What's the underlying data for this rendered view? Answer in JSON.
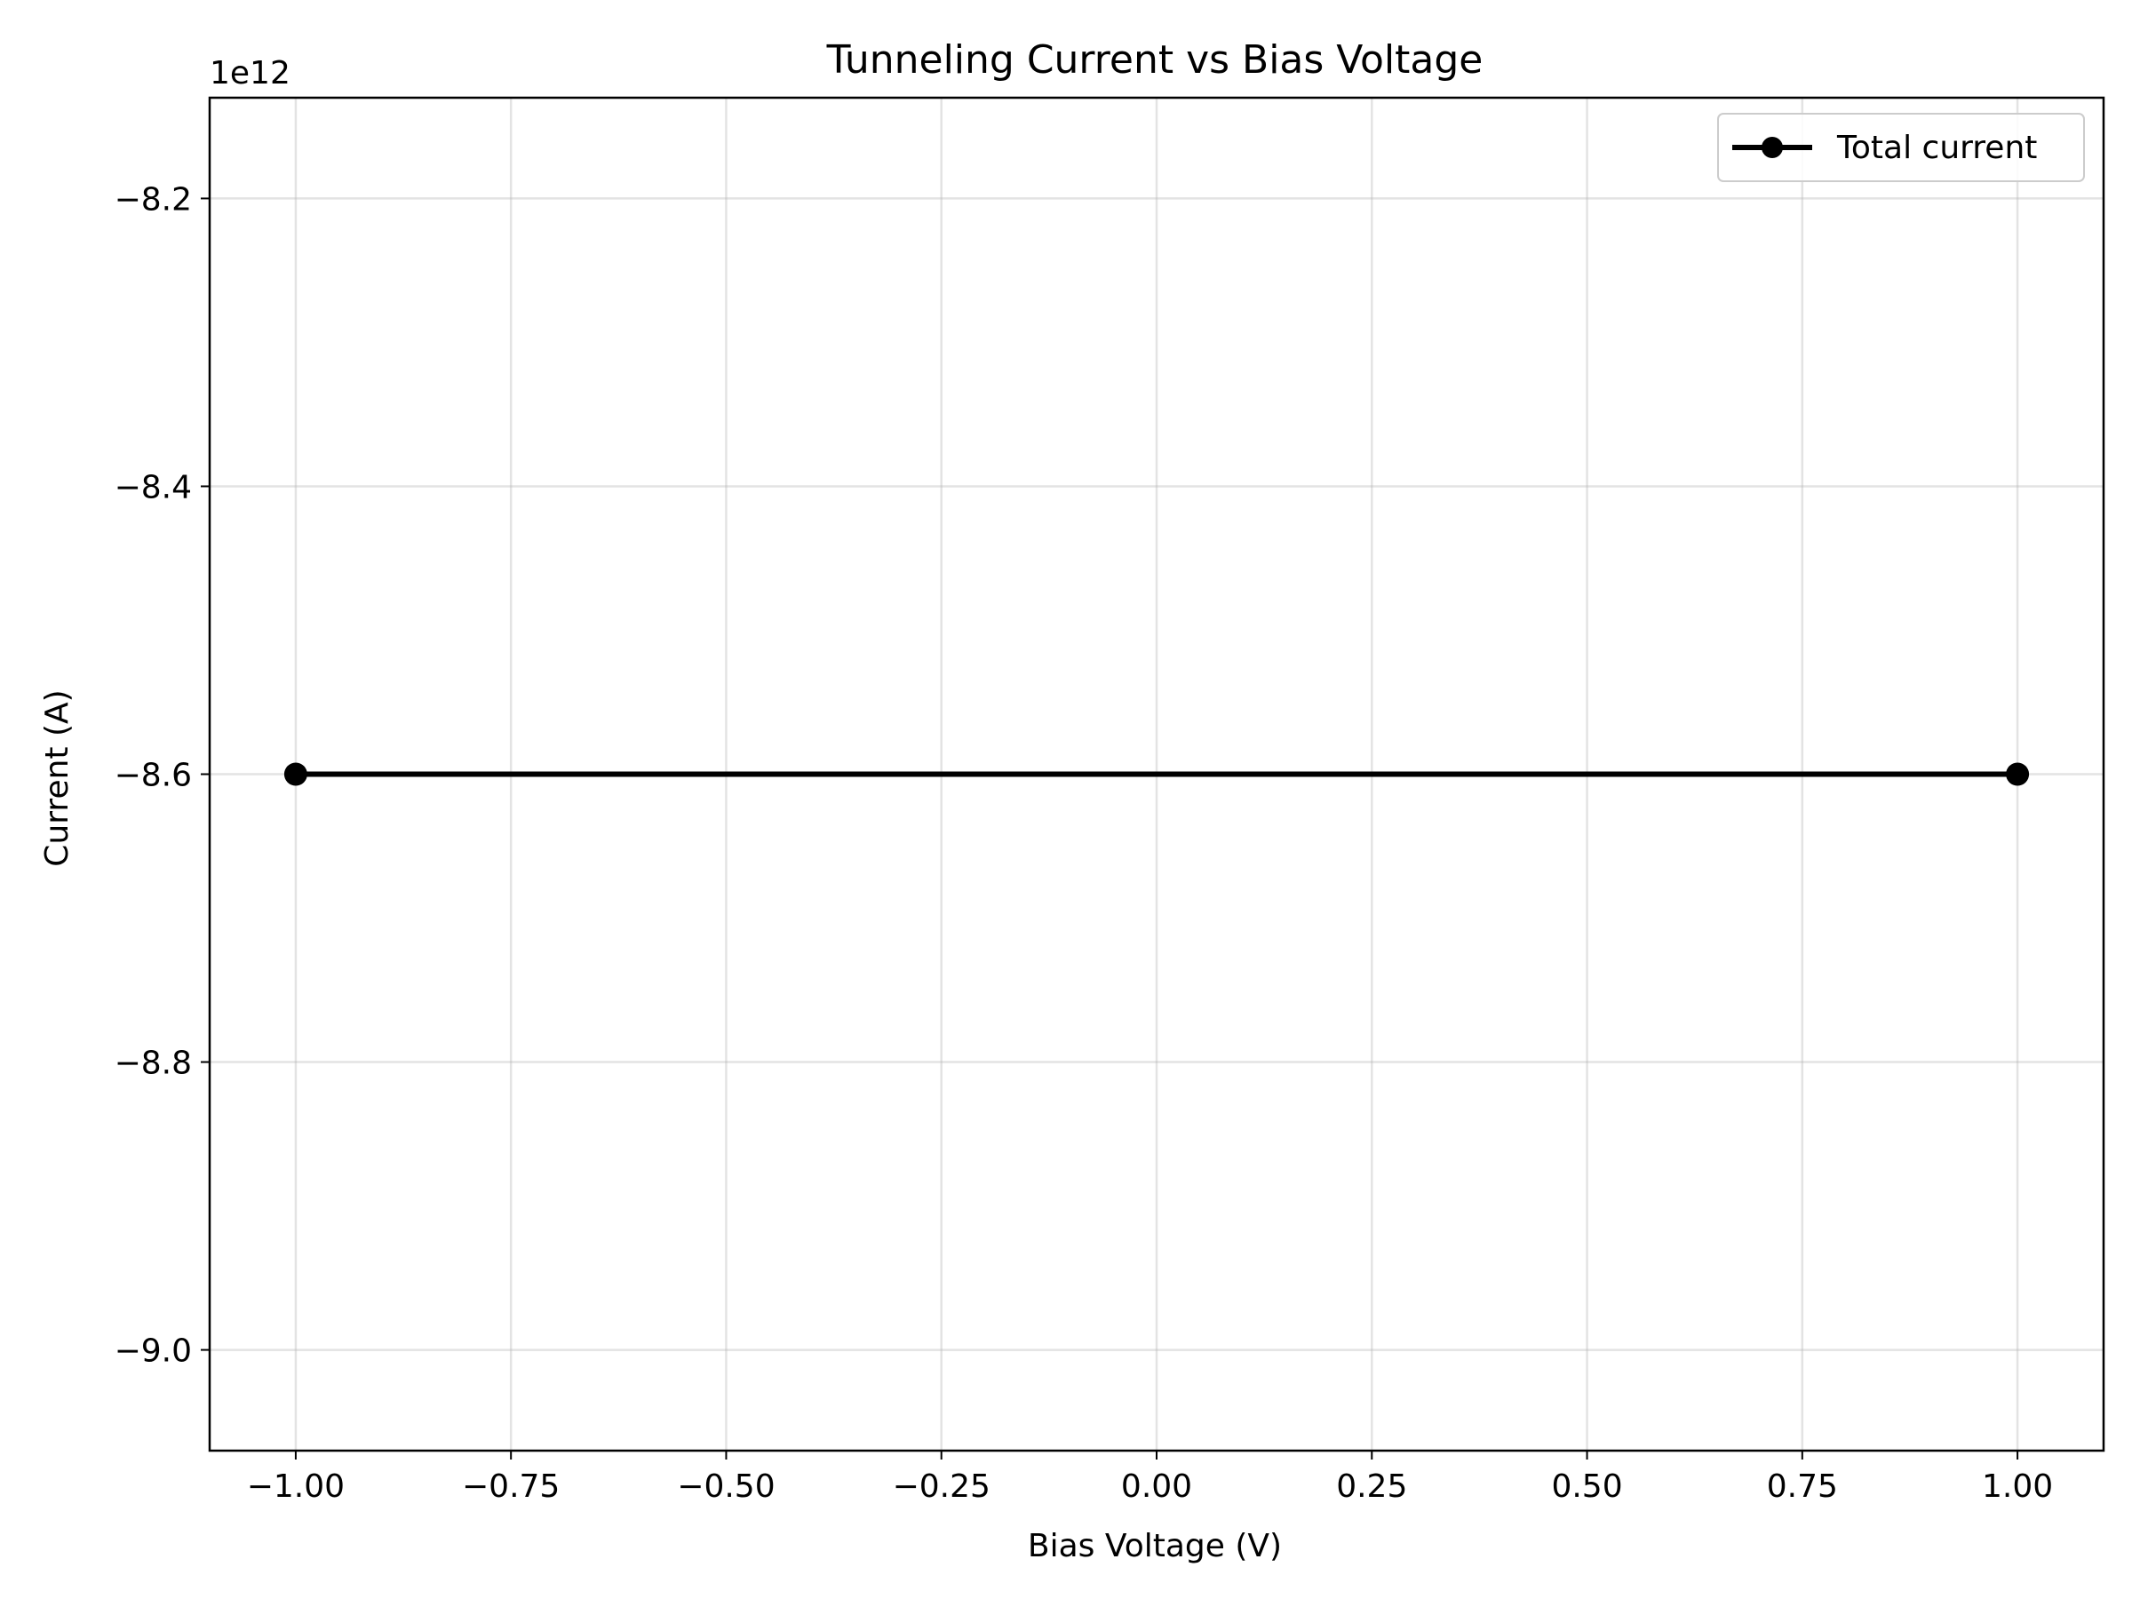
{
  "chart_data": {
    "type": "line",
    "title": "Tunneling Current vs Bias Voltage",
    "xlabel": "Bias Voltage (V)",
    "ylabel": "Current (A)",
    "y_offset_label": "1e12",
    "y_scale_factor": 1000000000000.0,
    "xlim": [
      -1.1,
      1.1
    ],
    "ylim": [
      -9.07,
      -8.13
    ],
    "x_ticks": [
      -1.0,
      -0.75,
      -0.5,
      -0.25,
      0.0,
      0.25,
      0.5,
      0.75,
      1.0
    ],
    "x_tick_labels": [
      "−1.00",
      "−0.75",
      "−0.50",
      "−0.25",
      "0.00",
      "0.25",
      "0.50",
      "0.75",
      "1.00"
    ],
    "y_ticks": [
      -8.2,
      -8.4,
      -8.6,
      -8.8,
      -9.0
    ],
    "y_tick_labels": [
      "−8.2",
      "−8.4",
      "−8.6",
      "−8.8",
      "−9.0"
    ],
    "grid": true,
    "legend_position": "top-right",
    "series": [
      {
        "name": "Total current",
        "color": "#000000",
        "marker": "circle",
        "x": [
          -1.0,
          1.0
        ],
        "y": [
          -8.6,
          -8.6
        ]
      }
    ]
  }
}
